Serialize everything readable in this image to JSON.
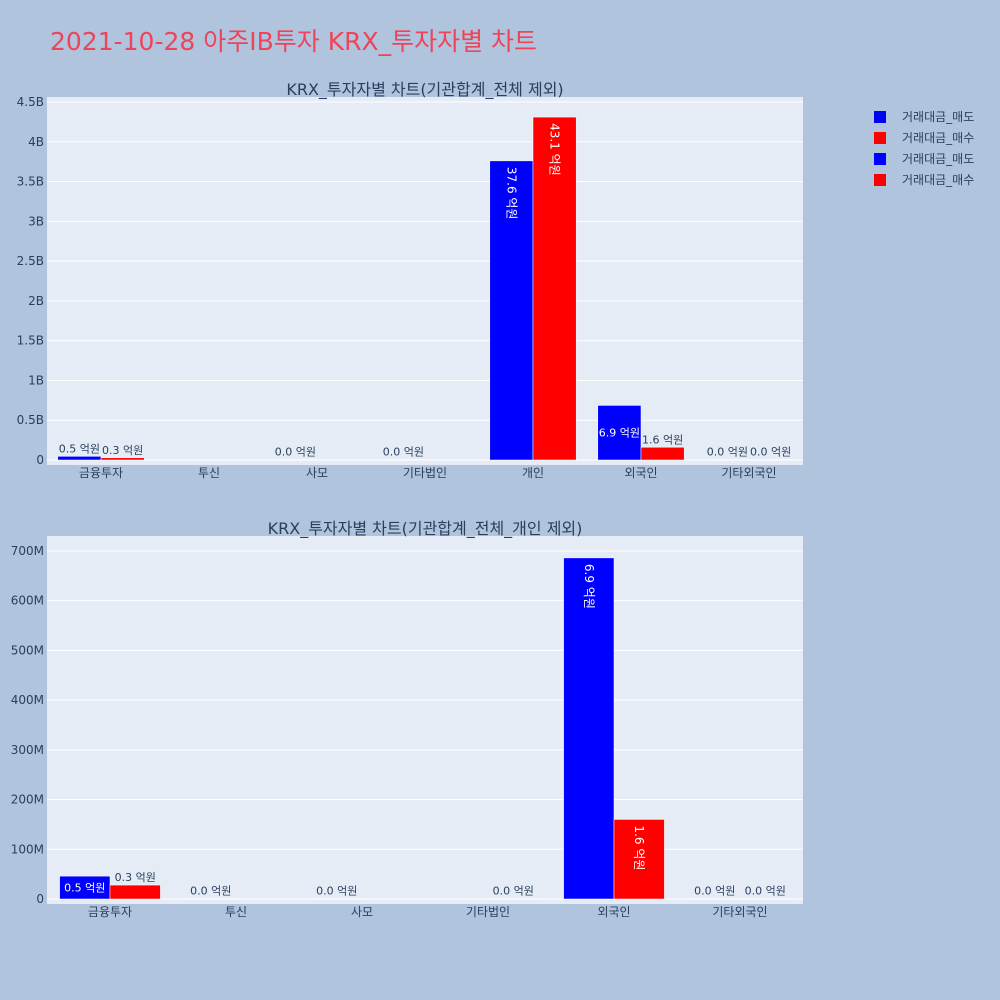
{
  "title": "2021-10-28 아주IB투자 KRX_투자자별 차트",
  "colors": {
    "sell": "#0000FF",
    "buy": "#FF0000",
    "plot_bg": "#E5ECF6",
    "page_bg": "#B0C4DE",
    "title": "#EF4359"
  },
  "legend": [
    {
      "label": "거래대금_매도",
      "color": "#0000FF"
    },
    {
      "label": "거래대금_매수",
      "color": "#FF0000"
    },
    {
      "label": "거래대금_매도",
      "color": "#0000FF"
    },
    {
      "label": "거래대금_매수",
      "color": "#FF0000"
    }
  ],
  "chart_data": [
    {
      "type": "bar",
      "title": "KRX_투자자별 차트(기관합계_전체 제외)",
      "categories": [
        "금융투자",
        "투신",
        "사모",
        "기타법인",
        "개인",
        "외국인",
        "기타외국인"
      ],
      "yticks": [
        0,
        500000000.0,
        1000000000.0,
        1500000000.0,
        2000000000.0,
        2500000000.0,
        3000000000.0,
        3500000000.0,
        4000000000.0,
        4500000000.0
      ],
      "ytick_labels": [
        "0",
        "0.5B",
        "1B",
        "1.5B",
        "2B",
        "2.5B",
        "3B",
        "3.5B",
        "4B",
        "4.5B"
      ],
      "ylim": [
        0,
        4500000000.0
      ],
      "grid": true,
      "series": [
        {
          "name": "거래대금_매도",
          "color": "#0000FF",
          "values": [
            46000000,
            null,
            0,
            0,
            3760000000,
            686000000,
            0
          ],
          "labels": [
            "0.5 억원",
            "",
            "0.0 억원",
            "0.0 억원",
            "37.6 억원",
            "6.9 억원",
            "0.0 억원"
          ]
        },
        {
          "name": "거래대금_매수",
          "color": "#FF0000",
          "values": [
            28000000,
            null,
            null,
            null,
            4310000000,
            160000000,
            0
          ],
          "labels": [
            "0.3 억원",
            "",
            "",
            "",
            "43.1 억원",
            "1.6 억원",
            "0.0 억원"
          ]
        }
      ]
    },
    {
      "type": "bar",
      "title": "KRX_투자자별 차트(기관합계_전체_개인 제외)",
      "categories": [
        "금융투자",
        "투신",
        "사모",
        "기타법인",
        "외국인",
        "기타외국인"
      ],
      "yticks": [
        0,
        100000000,
        200000000,
        300000000,
        400000000,
        500000000,
        600000000,
        700000000
      ],
      "ytick_labels": [
        "0",
        "100M",
        "200M",
        "300M",
        "400M",
        "500M",
        "600M",
        "700M"
      ],
      "ylim": [
        0,
        720000000
      ],
      "grid": true,
      "series": [
        {
          "name": "거래대금_매도",
          "color": "#0000FF",
          "values": [
            46000000,
            0,
            0,
            null,
            686000000,
            0
          ],
          "labels": [
            "0.5 억원",
            "0.0 억원",
            "0.0 억원",
            "",
            "6.9 억원",
            "0.0 억원"
          ]
        },
        {
          "name": "거래대금_매수",
          "color": "#FF0000",
          "values": [
            28000000,
            null,
            null,
            0,
            160000000,
            0
          ],
          "labels": [
            "0.3 억원",
            "",
            "",
            "0.0 억원",
            "1.6 억원",
            "0.0 억원"
          ]
        }
      ]
    }
  ]
}
